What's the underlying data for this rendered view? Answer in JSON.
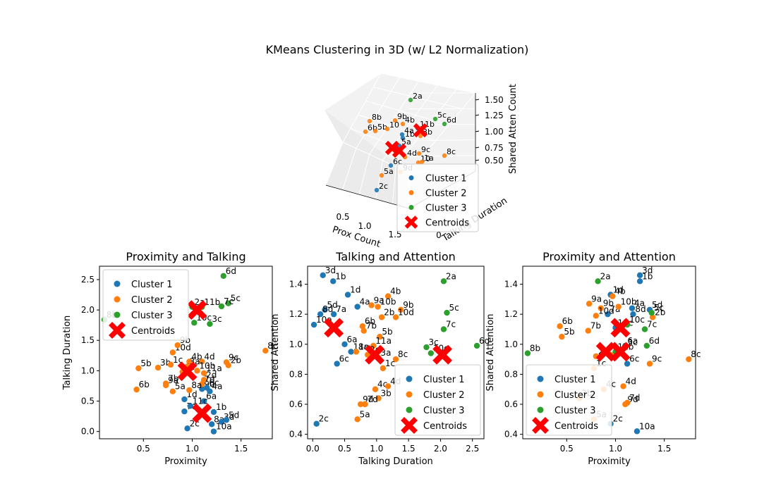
{
  "figure": {
    "title": "KMeans Clustering in 3D (w/ L2 Normalization)"
  },
  "colors": {
    "cluster1": "#1f77b4",
    "cluster2": "#ff7f0e",
    "cluster3": "#2ca02c",
    "centroid": "#ff0000"
  },
  "legend_labels": [
    "Cluster 1",
    "Cluster 2",
    "Cluster 3",
    "Centroids"
  ],
  "chart_data": [
    {
      "type": "scatter",
      "title": "",
      "subplot": "3d",
      "xlabel": "Prox Count",
      "ylabel": "Talking Duration",
      "zlabel": "Shared Atten Count",
      "x_ticks": [
        "0.5",
        "1.0",
        "1.5"
      ],
      "y_ticks": [
        "0"
      ],
      "z_ticks": [
        "0.50",
        "0.75",
        "1.00",
        "1.25",
        "1.50"
      ],
      "legend": "lower-right",
      "point_labels": [
        "2a",
        "8b",
        "9b",
        "4b",
        "5c",
        "6d",
        "6b",
        "5b",
        "10",
        "1b",
        "11b",
        "3b",
        "4a",
        "5a",
        "9c",
        "8c",
        "4d",
        "10",
        "1a",
        "6c",
        "5a",
        "9d",
        "2c"
      ],
      "point_colors": [
        "cluster3",
        "cluster2",
        "cluster2",
        "cluster2",
        "cluster3",
        "cluster3",
        "cluster2",
        "cluster2",
        "cluster2",
        "cluster1",
        "cluster1",
        "cluster2",
        "cluster1",
        "cluster1",
        "cluster2",
        "cluster2",
        "cluster2",
        "cluster2",
        "cluster2",
        "cluster1",
        "cluster2",
        "cluster2",
        "cluster1"
      ]
    },
    {
      "type": "scatter",
      "title": "Proximity and Talking",
      "xlabel": "Proximity",
      "ylabel": "Talking Duration",
      "xlim": [
        0.05,
        1.82
      ],
      "ylim": [
        -0.12,
        2.72
      ],
      "x_ticks": [
        0.5,
        1.0,
        1.5
      ],
      "y_ticks": [
        0.0,
        0.5,
        1.0,
        1.5,
        2.0,
        2.5
      ],
      "grid": false,
      "legend": "upper-left",
      "series": [
        {
          "name": "Cluster 1",
          "color": "cluster1",
          "points": [
            {
              "x": 1.22,
              "y": 0.32,
              "label": "1b"
            },
            {
              "x": 1.2,
              "y": 0.12,
              "label": "8a"
            },
            {
              "x": 1.3,
              "y": 0.16,
              "label": "3d"
            },
            {
              "x": 1.35,
              "y": 0.19,
              "label": "5d"
            },
            {
              "x": 1.22,
              "y": 0.0,
              "label": "10a"
            },
            {
              "x": 0.95,
              "y": 0.05,
              "label": "2c"
            },
            {
              "x": 0.92,
              "y": 0.33,
              "label": "7a"
            },
            {
              "x": 0.92,
              "y": 0.53,
              "label": "1d"
            },
            {
              "x": 1.12,
              "y": 0.5,
              "label": "6a"
            },
            {
              "x": 0.98,
              "y": 0.42,
              "label": "11c"
            },
            {
              "x": 1.18,
              "y": 0.66,
              "label": "4a"
            },
            {
              "x": 1.1,
              "y": 0.7,
              "label": "9d"
            },
            {
              "x": 1.15,
              "y": 0.72,
              "label": "6c"
            }
          ]
        },
        {
          "name": "Cluster 2",
          "color": "cluster2",
          "points": [
            {
              "x": 1.75,
              "y": 1.33,
              "label": "8c"
            },
            {
              "x": 1.35,
              "y": 1.14,
              "label": "9c"
            },
            {
              "x": 1.37,
              "y": 1.09,
              "label": "2b"
            },
            {
              "x": 0.45,
              "y": 1.04,
              "label": "5b"
            },
            {
              "x": 0.43,
              "y": 0.69,
              "label": "6b"
            },
            {
              "x": 0.65,
              "y": 1.05,
              "label": "3b"
            },
            {
              "x": 0.78,
              "y": 1.1,
              "label": "1c"
            },
            {
              "x": 0.8,
              "y": 1.3,
              "label": "10d"
            },
            {
              "x": 0.85,
              "y": 1.42,
              "label": "9b"
            },
            {
              "x": 0.97,
              "y": 1.15,
              "label": "4b"
            },
            {
              "x": 1.1,
              "y": 1.15,
              "label": "4d"
            },
            {
              "x": 0.9,
              "y": 0.98,
              "label": "4c"
            },
            {
              "x": 1.05,
              "y": 1.0,
              "label": "10b"
            },
            {
              "x": 1.12,
              "y": 0.96,
              "label": "11a"
            },
            {
              "x": 1.12,
              "y": 0.85,
              "label": "2d"
            },
            {
              "x": 1.1,
              "y": 0.78,
              "label": "7d"
            },
            {
              "x": 0.73,
              "y": 0.79,
              "label": "7b"
            },
            {
              "x": 0.73,
              "y": 0.76,
              "label": "9a"
            },
            {
              "x": 0.8,
              "y": 0.66,
              "label": "5a"
            },
            {
              "x": 0.97,
              "y": 0.68,
              "label": "8a"
            },
            {
              "x": 0.95,
              "y": 1.07,
              "label": "3a"
            }
          ]
        },
        {
          "name": "Cluster 3",
          "color": "cluster3",
          "points": [
            {
              "x": 1.32,
              "y": 2.56,
              "label": "6d"
            },
            {
              "x": 1.37,
              "y": 2.11,
              "label": "5c"
            },
            {
              "x": 1.3,
              "y": 2.06,
              "label": "7c"
            },
            {
              "x": 1.0,
              "y": 2.05,
              "label": "2a"
            },
            {
              "x": 1.1,
              "y": 2.05,
              "label": "11b"
            },
            {
              "x": 1.02,
              "y": 1.79,
              "label": "10c"
            },
            {
              "x": 1.18,
              "y": 1.77,
              "label": "3c"
            },
            {
              "x": 0.1,
              "y": 1.84,
              "label": "8b"
            }
          ]
        },
        {
          "name": "Centroids",
          "color": "centroid",
          "marker": "X",
          "points": [
            {
              "x": 1.05,
              "y": 2.0
            },
            {
              "x": 0.95,
              "y": 0.99
            },
            {
              "x": 1.1,
              "y": 0.3
            }
          ]
        }
      ]
    },
    {
      "type": "scatter",
      "title": "Talking and Attention",
      "xlabel": "Talking Duration",
      "ylabel": "Shared Attention",
      "xlim": [
        -0.08,
        2.68
      ],
      "ylim": [
        0.37,
        1.52
      ],
      "x_ticks": [
        0.0,
        0.5,
        1.0,
        1.5,
        2.0,
        2.5
      ],
      "y_ticks": [
        0.4,
        0.6,
        0.8,
        1.0,
        1.2,
        1.4
      ],
      "grid": false,
      "legend": "lower-right",
      "series": [
        {
          "name": "Cluster 1",
          "color": "cluster1",
          "points": [
            {
              "x": 0.16,
              "y": 1.46,
              "label": "3d"
            },
            {
              "x": 0.32,
              "y": 1.42,
              "label": "1b"
            },
            {
              "x": 0.55,
              "y": 1.33,
              "label": "1d"
            },
            {
              "x": 0.7,
              "y": 1.25,
              "label": "4a"
            },
            {
              "x": 0.19,
              "y": 1.23,
              "label": "5d"
            },
            {
              "x": 0.12,
              "y": 1.2,
              "label": "8d"
            },
            {
              "x": 0.33,
              "y": 1.2,
              "label": "7a"
            },
            {
              "x": 0.02,
              "y": 1.13,
              "label": "10a"
            },
            {
              "x": 0.5,
              "y": 1.0,
              "label": "6a"
            },
            {
              "x": 0.6,
              "y": 0.95,
              "label": "11c"
            },
            {
              "x": 0.38,
              "y": 0.87,
              "label": "6c"
            },
            {
              "x": 0.06,
              "y": 0.47,
              "label": "2c"
            }
          ]
        },
        {
          "name": "Cluster 2",
          "color": "cluster2",
          "points": [
            {
              "x": 1.18,
              "y": 1.32,
              "label": "4b"
            },
            {
              "x": 0.92,
              "y": 1.26,
              "label": "9a"
            },
            {
              "x": 1.02,
              "y": 1.25,
              "label": "10b"
            },
            {
              "x": 1.38,
              "y": 1.23,
              "label": "9b"
            },
            {
              "x": 1.08,
              "y": 1.18,
              "label": "2b"
            },
            {
              "x": 1.3,
              "y": 1.18,
              "label": "10d"
            },
            {
              "x": 0.78,
              "y": 1.12,
              "label": "6b"
            },
            {
              "x": 0.8,
              "y": 1.09,
              "label": "7b"
            },
            {
              "x": 1.05,
              "y": 1.05,
              "label": "5b"
            },
            {
              "x": 0.95,
              "y": 0.99,
              "label": "11a"
            },
            {
              "x": 0.68,
              "y": 0.95,
              "label": "8a"
            },
            {
              "x": 0.86,
              "y": 0.93,
              "label": "2d"
            },
            {
              "x": 1.03,
              "y": 0.91,
              "label": "3a"
            },
            {
              "x": 1.3,
              "y": 0.9,
              "label": "8c"
            },
            {
              "x": 1.1,
              "y": 0.84,
              "label": "1c"
            },
            {
              "x": 0.98,
              "y": 0.7,
              "label": "4c"
            },
            {
              "x": 1.18,
              "y": 0.72,
              "label": "4d"
            },
            {
              "x": 1.03,
              "y": 0.64,
              "label": "3b"
            },
            {
              "x": 0.75,
              "y": 0.6,
              "label": "9d"
            },
            {
              "x": 0.82,
              "y": 0.6,
              "label": "7d"
            },
            {
              "x": 0.7,
              "y": 0.5,
              "label": "5a"
            }
          ]
        },
        {
          "name": "Cluster 3",
          "color": "cluster3",
          "points": [
            {
              "x": 2.05,
              "y": 1.42,
              "label": "2a"
            },
            {
              "x": 2.1,
              "y": 1.21,
              "label": "5c"
            },
            {
              "x": 2.05,
              "y": 1.1,
              "label": "7c"
            },
            {
              "x": 1.78,
              "y": 0.98,
              "label": "3c"
            },
            {
              "x": 1.85,
              "y": 0.94,
              "label": "10c"
            },
            {
              "x": 2.57,
              "y": 0.99,
              "label": "6d"
            }
          ]
        },
        {
          "name": "Centroids",
          "color": "centroid",
          "marker": "X",
          "points": [
            {
              "x": 0.33,
              "y": 1.11
            },
            {
              "x": 0.97,
              "y": 0.93
            },
            {
              "x": 2.03,
              "y": 0.93
            }
          ]
        }
      ]
    },
    {
      "type": "scatter",
      "title": "Proximity and Attention",
      "xlabel": "Proximity",
      "ylabel": "Shared Attention",
      "xlim": [
        0.05,
        1.82
      ],
      "ylim": [
        0.37,
        1.52
      ],
      "x_ticks": [
        0.5,
        1.0,
        1.5
      ],
      "y_ticks": [
        0.4,
        0.6,
        0.8,
        1.0,
        1.2,
        1.4
      ],
      "grid": false,
      "legend": "lower-left",
      "series": [
        {
          "name": "Cluster 1",
          "color": "cluster1",
          "points": [
            {
              "x": 1.25,
              "y": 1.46,
              "label": "3d"
            },
            {
              "x": 1.25,
              "y": 1.42,
              "label": "1b"
            },
            {
              "x": 0.95,
              "y": 1.33,
              "label": "1d"
            },
            {
              "x": 1.17,
              "y": 1.24,
              "label": "4a"
            },
            {
              "x": 1.35,
              "y": 1.23,
              "label": "5d"
            },
            {
              "x": 1.18,
              "y": 1.2,
              "label": "8d"
            },
            {
              "x": 0.92,
              "y": 1.2,
              "label": "7a"
            },
            {
              "x": 1.0,
              "y": 1.11,
              "label": "11c"
            },
            {
              "x": 1.1,
              "y": 0.99,
              "label": "6a"
            },
            {
              "x": 1.12,
              "y": 0.87,
              "label": "6c"
            },
            {
              "x": 0.95,
              "y": 0.47,
              "label": "2c"
            },
            {
              "x": 1.22,
              "y": 0.42,
              "label": "10a"
            }
          ]
        },
        {
          "name": "Cluster 2",
          "color": "cluster2",
          "points": [
            {
              "x": 0.73,
              "y": 1.27,
              "label": "9a"
            },
            {
              "x": 0.97,
              "y": 1.32,
              "label": "4b"
            },
            {
              "x": 1.03,
              "y": 1.25,
              "label": "10b"
            },
            {
              "x": 0.85,
              "y": 1.24,
              "label": "9b"
            },
            {
              "x": 1.38,
              "y": 1.18,
              "label": "2b"
            },
            {
              "x": 0.8,
              "y": 1.19,
              "label": "10d"
            },
            {
              "x": 0.43,
              "y": 1.12,
              "label": "6b"
            },
            {
              "x": 0.72,
              "y": 1.09,
              "label": "7b"
            },
            {
              "x": 0.45,
              "y": 1.05,
              "label": "5b"
            },
            {
              "x": 1.75,
              "y": 0.9,
              "label": "8c"
            },
            {
              "x": 1.35,
              "y": 0.87,
              "label": "9c"
            },
            {
              "x": 0.8,
              "y": 0.92,
              "label": "2d"
            },
            {
              "x": 0.95,
              "y": 0.93,
              "label": "3a"
            },
            {
              "x": 0.78,
              "y": 0.84,
              "label": "1c"
            },
            {
              "x": 0.88,
              "y": 0.7,
              "label": "4c"
            },
            {
              "x": 1.08,
              "y": 0.72,
              "label": "4d"
            },
            {
              "x": 0.63,
              "y": 0.64,
              "label": "3b"
            },
            {
              "x": 1.1,
              "y": 0.6,
              "label": "9d"
            },
            {
              "x": 1.12,
              "y": 0.61,
              "label": "7d"
            },
            {
              "x": 0.78,
              "y": 0.5,
              "label": "5a"
            }
          ]
        },
        {
          "name": "Cluster 3",
          "color": "cluster3",
          "points": [
            {
              "x": 0.82,
              "y": 1.42,
              "label": "2a"
            },
            {
              "x": 1.37,
              "y": 1.21,
              "label": "5c"
            },
            {
              "x": 1.3,
              "y": 1.1,
              "label": "7c"
            },
            {
              "x": 1.12,
              "y": 1.13,
              "label": "10c"
            },
            {
              "x": 1.32,
              "y": 0.99,
              "label": "6d"
            },
            {
              "x": 1.1,
              "y": 0.98,
              "label": "3c"
            },
            {
              "x": 1.0,
              "y": 0.95,
              "label": "11b"
            },
            {
              "x": 0.1,
              "y": 0.94,
              "label": "8b"
            }
          ]
        },
        {
          "name": "Centroids",
          "color": "centroid",
          "marker": "X",
          "points": [
            {
              "x": 1.05,
              "y": 1.11
            },
            {
              "x": 0.9,
              "y": 0.95
            },
            {
              "x": 1.05,
              "y": 0.95
            }
          ]
        }
      ]
    }
  ]
}
